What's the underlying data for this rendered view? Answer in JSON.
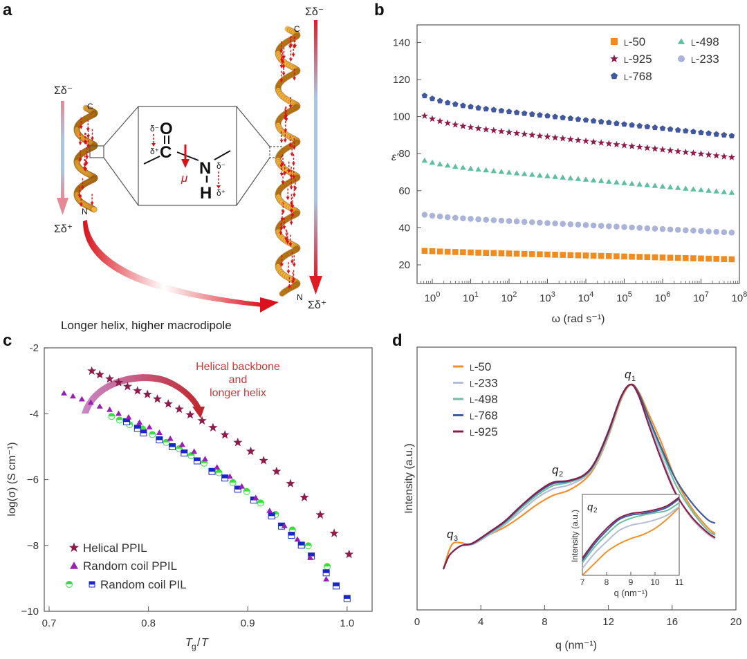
{
  "panels": {
    "a": {
      "letter": "a",
      "short_helix": {
        "top_label": "C",
        "bottom_label": "N",
        "arrow_top": "Σδ⁻",
        "arrow_bottom": "Σδ⁺"
      },
      "long_helix": {
        "top_label": "C",
        "bottom_label": "N",
        "arrow_top": "Σδ⁻",
        "arrow_bottom": "Σδ⁺"
      },
      "inset": {
        "O": "O",
        "C": "C",
        "N": "N",
        "H": "H",
        "delta_minus": "δ⁻",
        "delta_plus": "δ⁺",
        "mu": "μ"
      },
      "caption": "Longer helix, higher macrodipole",
      "colors": {
        "helix": "#e8a62a",
        "dipole": "#d9121b",
        "gradient_top": "#e58a95",
        "gradient_mid": "#a9c6e3"
      }
    },
    "b": {
      "letter": "b"
    },
    "c": {
      "letter": "c",
      "annotation": [
        "Helical backbone",
        "and",
        "longer helix"
      ]
    },
    "d": {
      "letter": "d",
      "peak_labels": {
        "q1": "q",
        "q1_sub": "1",
        "q2": "q",
        "q2_sub": "2",
        "q3": "q",
        "q3_sub": "3"
      }
    }
  },
  "chart_data": [
    {
      "id": "b",
      "type": "scatter",
      "title": "",
      "xlabel": "ω (rad s⁻¹)",
      "ylabel": "ε′",
      "xscale": "log",
      "xlim_log10": [
        -0.3,
        8
      ],
      "ylim": [
        10,
        150
      ],
      "xticks_log10": [
        0,
        1,
        2,
        3,
        4,
        5,
        6,
        7,
        8
      ],
      "xtick_labels": [
        "10⁰",
        "10¹",
        "10²",
        "10³",
        "10⁴",
        "10⁵",
        "10⁶",
        "10⁷",
        "10⁸"
      ],
      "yticks": [
        20,
        40,
        60,
        80,
        100,
        120,
        140
      ],
      "legend_position": "top-right",
      "x_log10": {
        "start": -0.2,
        "end": 7.8,
        "count": 41
      },
      "series": [
        {
          "name": "L-50",
          "label_prefix": "L",
          "label_suffix": "-50",
          "marker": "square",
          "color": "#f28b1e",
          "start": 27.3,
          "end": 23.0,
          "curve": 0.15
        },
        {
          "name": "L-233",
          "label_prefix": "L",
          "label_suffix": "-233",
          "marker": "circle",
          "color": "#aab4d8",
          "start": 46.0,
          "end": 37.4,
          "curve": 0.35
        },
        {
          "name": "L-498",
          "label_prefix": "L",
          "label_suffix": "-498",
          "marker": "triangle",
          "color": "#5cbf9f",
          "start": 74.0,
          "end": 59.0,
          "curve": 0.45
        },
        {
          "name": "L-768",
          "label_prefix": "L",
          "label_suffix": "-768",
          "marker": "pentagon",
          "color": "#41589f",
          "start": 107.5,
          "end": 89.6,
          "curve": 0.6
        },
        {
          "name": "L-925",
          "label_prefix": "L",
          "label_suffix": "-925",
          "marker": "star",
          "color": "#8c1d4a",
          "start": 96.5,
          "end": 78.0,
          "curve": 0.6
        }
      ]
    },
    {
      "id": "c",
      "type": "scatter",
      "title": "",
      "xlabel": "Tg/T",
      "ylabel": "log(σ) (S cm⁻¹)",
      "xlim": [
        0.695,
        1.033
      ],
      "ylim": [
        -10,
        -2
      ],
      "xticks": [
        0.7,
        0.8,
        0.9,
        1.0
      ],
      "xtick_labels": [
        "0.7",
        "0.8",
        "0.9",
        "1.0"
      ],
      "yticks": [
        -2,
        -4,
        -6,
        -8,
        -10
      ],
      "ytick_labels": [
        "-2",
        "-4",
        "−6",
        "−8",
        "−10"
      ],
      "legend_position": "bottom-left",
      "series": [
        {
          "name": "Helical PPIL",
          "marker": "star",
          "color": "#8c1d4a",
          "x": [
            0.743,
            0.751,
            0.761,
            0.77,
            0.779,
            0.789,
            0.799,
            0.809,
            0.82,
            0.831,
            0.842,
            0.854,
            0.865,
            0.877,
            0.89,
            0.903,
            0.916,
            0.929,
            0.943,
            0.957,
            0.973,
            0.987,
            1.002
          ],
          "y": [
            -2.7,
            -2.81,
            -2.94,
            -3.05,
            -3.17,
            -3.3,
            -3.41,
            -3.55,
            -3.7,
            -3.86,
            -4.03,
            -4.21,
            -4.42,
            -4.64,
            -4.87,
            -5.14,
            -5.42,
            -5.75,
            -6.12,
            -6.54,
            -7.07,
            -7.63,
            -8.27
          ]
        },
        {
          "name": "Random coil PPIL",
          "marker": "triangle",
          "color": "#9a1eb4",
          "x": [
            0.715,
            0.724,
            0.733,
            0.742,
            0.751,
            0.761,
            0.77,
            0.78,
            0.791,
            0.801,
            0.811,
            0.822,
            0.834,
            0.846,
            0.857,
            0.869,
            0.882,
            0.894,
            0.908,
            0.922,
            0.937,
            0.95,
            0.963,
            0.979
          ],
          "y": [
            -3.37,
            -3.46,
            -3.55,
            -3.65,
            -3.77,
            -3.87,
            -3.99,
            -4.1,
            -4.26,
            -4.4,
            -4.57,
            -4.75,
            -4.93,
            -5.14,
            -5.37,
            -5.62,
            -5.9,
            -6.2,
            -6.55,
            -6.94,
            -7.4,
            -7.81,
            -8.37,
            -9.02
          ]
        },
        {
          "name": "Random coil PIL (circle)",
          "marker": "half-circle",
          "color": "#35e03a",
          "x": [
            0.763,
            0.771,
            0.781,
            0.794,
            0.804,
            0.818,
            0.831,
            0.843,
            0.856,
            0.871,
            0.885,
            0.899,
            0.913,
            0.928,
            0.945,
            0.961,
            0.98
          ],
          "y": [
            -4.08,
            -4.19,
            -4.33,
            -4.46,
            -4.63,
            -4.87,
            -5.06,
            -5.27,
            -5.5,
            -5.79,
            -6.09,
            -6.36,
            -6.71,
            -7.06,
            -7.53,
            -8.01,
            -8.64
          ]
        },
        {
          "name": "Random coil PIL (square)",
          "marker": "half-square",
          "color": "#1727c8",
          "x": [
            0.778,
            0.789,
            0.795,
            0.811,
            0.824,
            0.836,
            0.849,
            0.864,
            0.877,
            0.89,
            0.906,
            0.924,
            0.934,
            0.944,
            0.954,
            0.964,
            0.979,
            0.989,
            1.0
          ],
          "y": [
            -4.24,
            -4.44,
            -4.58,
            -4.79,
            -5.0,
            -5.19,
            -5.43,
            -5.75,
            -5.95,
            -6.29,
            -6.62,
            -7.1,
            -7.41,
            -7.69,
            -7.99,
            -8.32,
            -8.83,
            -9.23,
            -9.61
          ]
        }
      ],
      "legend": [
        {
          "label": "Helical PPIL",
          "markers": [
            "star"
          ]
        },
        {
          "label": "Random coil PPIL",
          "markers": [
            "triangle"
          ]
        },
        {
          "label": "Random coil PIL",
          "markers": [
            "half-circle",
            "half-square"
          ]
        }
      ]
    },
    {
      "id": "d",
      "type": "line",
      "title": "",
      "xlabel": "q (nm⁻¹)",
      "ylabel": "Intensity (a.u.)",
      "xlim": [
        0,
        20
      ],
      "ylim_normalized": [
        0,
        1
      ],
      "xticks": [
        0,
        4,
        8,
        12,
        16,
        20
      ],
      "legend_position": "top-left",
      "series": [
        {
          "name": "L-50",
          "label_prefix": "L",
          "label_suffix": "-50",
          "color": "#f0902a",
          "x": [
            1.65,
            2.0,
            2.3,
            2.8,
            3.5,
            4.5,
            5.5,
            6.5,
            7.5,
            8.5,
            9.5,
            10.5,
            11.2,
            12.0,
            12.8,
            13.4,
            13.9,
            14.5,
            15.3,
            16.2,
            17.2,
            18.2,
            18.7
          ],
          "y": [
            0.155,
            0.225,
            0.255,
            0.255,
            0.25,
            0.285,
            0.315,
            0.355,
            0.4,
            0.435,
            0.455,
            0.495,
            0.55,
            0.66,
            0.8,
            0.858,
            0.83,
            0.75,
            0.64,
            0.5,
            0.39,
            0.315,
            0.29
          ]
        },
        {
          "name": "L-233",
          "label_prefix": "L",
          "label_suffix": "-233",
          "color": "#b4bcd6",
          "x": [
            1.65,
            2.0,
            2.4,
            2.8,
            3.5,
            4.5,
            5.5,
            6.5,
            7.5,
            8.5,
            9.5,
            10.5,
            11.2,
            12.0,
            12.8,
            13.4,
            13.9,
            14.5,
            15.3,
            16.2,
            17.2,
            18.2,
            18.7
          ],
          "y": [
            0.155,
            0.205,
            0.23,
            0.245,
            0.25,
            0.285,
            0.325,
            0.375,
            0.425,
            0.46,
            0.475,
            0.505,
            0.555,
            0.665,
            0.805,
            0.858,
            0.82,
            0.72,
            0.59,
            0.45,
            0.35,
            0.29,
            0.27
          ]
        },
        {
          "name": "L-498",
          "label_prefix": "L",
          "label_suffix": "-498",
          "color": "#6bbfa2",
          "x": [
            1.65,
            2.0,
            2.4,
            2.8,
            3.5,
            4.5,
            5.5,
            6.5,
            7.5,
            8.5,
            9.5,
            10.5,
            11.2,
            12.0,
            12.8,
            13.4,
            13.9,
            14.5,
            15.3,
            16.2,
            17.2,
            18.2,
            18.7
          ],
          "y": [
            0.155,
            0.205,
            0.23,
            0.245,
            0.252,
            0.29,
            0.33,
            0.385,
            0.435,
            0.472,
            0.485,
            0.51,
            0.56,
            0.67,
            0.808,
            0.858,
            0.822,
            0.73,
            0.61,
            0.48,
            0.38,
            0.305,
            0.285
          ]
        },
        {
          "name": "L-768",
          "label_prefix": "L",
          "label_suffix": "-768",
          "color": "#3e5b9c",
          "x": [
            1.65,
            2.0,
            2.4,
            2.8,
            3.5,
            4.5,
            5.5,
            6.5,
            7.5,
            8.5,
            9.5,
            10.5,
            11.2,
            12.0,
            12.8,
            13.4,
            13.9,
            14.5,
            15.3,
            16.2,
            17.2,
            18.2,
            18.7
          ],
          "y": [
            0.155,
            0.205,
            0.23,
            0.245,
            0.253,
            0.293,
            0.335,
            0.392,
            0.443,
            0.48,
            0.49,
            0.513,
            0.565,
            0.675,
            0.81,
            0.858,
            0.825,
            0.735,
            0.62,
            0.5,
            0.41,
            0.345,
            0.33
          ]
        },
        {
          "name": "L-925",
          "label_prefix": "L",
          "label_suffix": "-925",
          "color": "#8c1d4a",
          "x": [
            1.65,
            2.0,
            2.4,
            2.8,
            3.5,
            4.5,
            5.5,
            6.5,
            7.5,
            8.5,
            9.5,
            10.5,
            11.2,
            12.0,
            12.8,
            13.4,
            13.9,
            14.5,
            15.3,
            16.2,
            17.2,
            18.2,
            18.7
          ],
          "y": [
            0.155,
            0.205,
            0.23,
            0.245,
            0.255,
            0.295,
            0.338,
            0.395,
            0.447,
            0.485,
            0.492,
            0.515,
            0.568,
            0.68,
            0.812,
            0.858,
            0.815,
            0.71,
            0.575,
            0.445,
            0.355,
            0.295,
            0.275
          ]
        }
      ],
      "inset": {
        "xlabel": "q (nm⁻¹)",
        "ylabel": "Intensity (a.u.)",
        "label": "q",
        "label_sub": "2",
        "xlim": [
          7,
          11
        ],
        "xticks": [
          7,
          8,
          9,
          10,
          11
        ],
        "ylim_normalized": [
          0,
          1
        ],
        "series": [
          {
            "name": "L-50",
            "color": "#f0902a",
            "x": [
              7,
              7.5,
              8,
              8.5,
              9,
              9.5,
              10,
              10.5,
              11
            ],
            "y": [
              0.0,
              0.15,
              0.3,
              0.4,
              0.47,
              0.52,
              0.6,
              0.72,
              0.87
            ]
          },
          {
            "name": "L-233",
            "color": "#b4bcd6",
            "x": [
              7,
              7.5,
              8,
              8.5,
              9,
              9.5,
              10,
              10.5,
              11
            ],
            "y": [
              0.09,
              0.28,
              0.43,
              0.57,
              0.64,
              0.67,
              0.71,
              0.77,
              0.88
            ]
          },
          {
            "name": "L-498",
            "color": "#6bbfa2",
            "x": [
              7,
              7.5,
              8,
              8.5,
              9,
              9.5,
              10,
              10.5,
              11
            ],
            "y": [
              0.16,
              0.36,
              0.52,
              0.66,
              0.73,
              0.77,
              0.8,
              0.83,
              0.93
            ]
          },
          {
            "name": "L-768",
            "color": "#3e5b9c",
            "x": [
              7,
              7.5,
              8,
              8.5,
              9,
              9.5,
              10,
              10.5,
              11
            ],
            "y": [
              0.19,
              0.4,
              0.57,
              0.71,
              0.77,
              0.79,
              0.82,
              0.87,
              0.98
            ]
          },
          {
            "name": "L-925",
            "color": "#8c1d4a",
            "x": [
              7,
              7.5,
              8,
              8.5,
              9,
              9.5,
              10,
              10.5,
              11
            ],
            "y": [
              0.22,
              0.43,
              0.6,
              0.73,
              0.79,
              0.81,
              0.84,
              0.89,
              1.0
            ]
          }
        ]
      }
    }
  ]
}
